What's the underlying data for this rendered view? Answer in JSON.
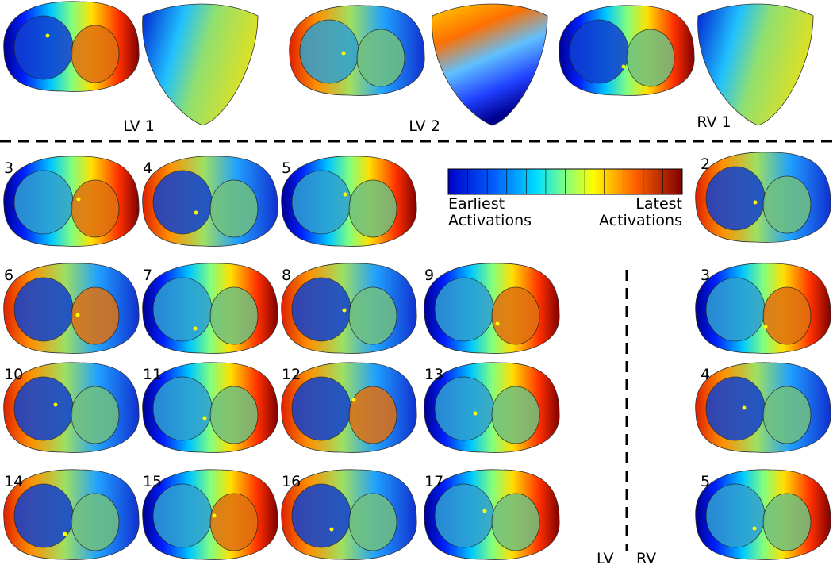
{
  "top_panels": [
    "LV 1",
    "LV 2",
    "RV 1"
  ],
  "lv_panels": [
    "3",
    "4",
    "5",
    "6",
    "7",
    "8",
    "9",
    "10",
    "11",
    "12",
    "13",
    "14",
    "15",
    "16",
    "17"
  ],
  "rv_panels": [
    "2",
    "3",
    "4",
    "5"
  ],
  "colorbar": {
    "left_label": [
      "Earliest",
      "Activations"
    ],
    "right_label": [
      "Latest",
      "Activations"
    ]
  },
  "divider_labels": {
    "left": "LV",
    "right": "RV"
  }
}
